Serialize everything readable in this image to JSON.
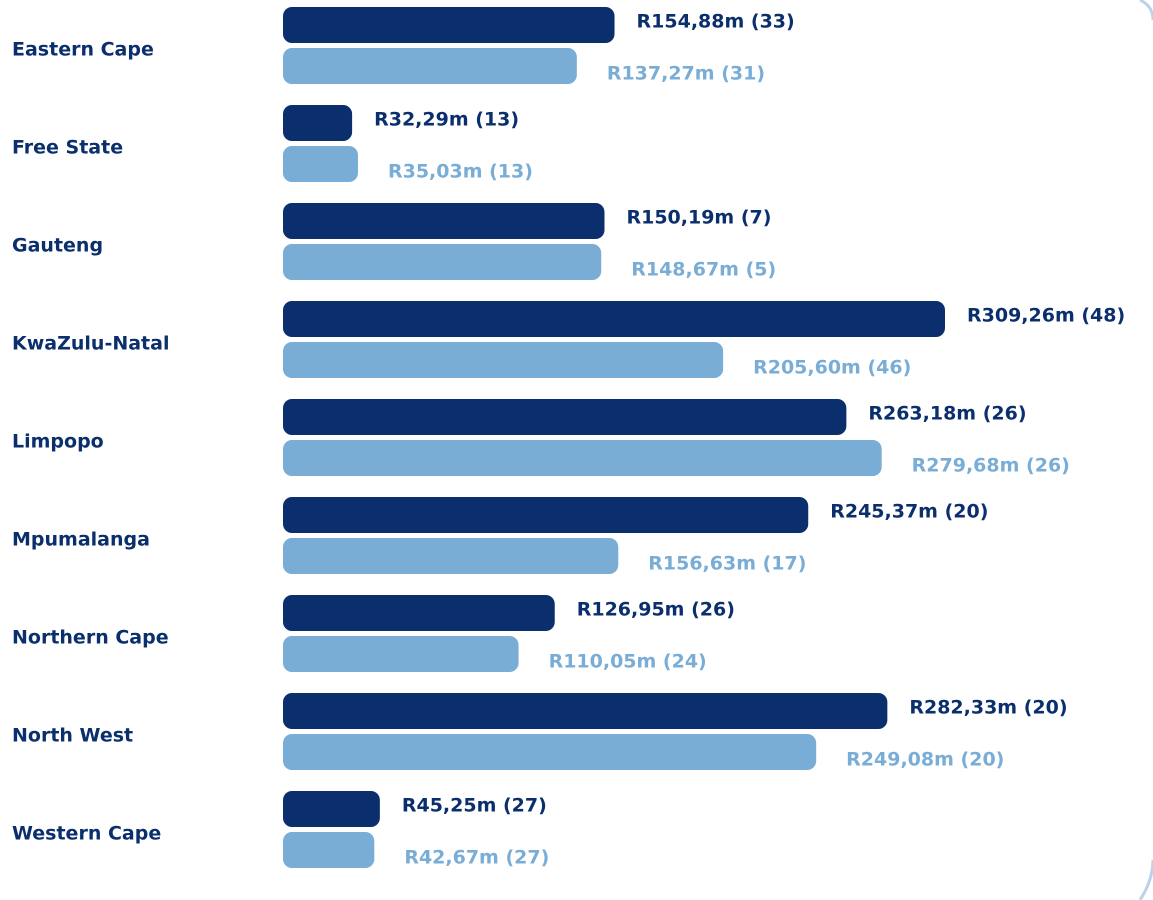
{
  "chart_data": {
    "type": "hbar",
    "categories": [
      "Eastern Cape",
      "Free State",
      "Gauteng",
      "KwaZulu-Natal",
      "Limpopo",
      "Mpumalanga",
      "Northern Cape",
      "North West",
      "Western Cape"
    ],
    "series": [
      {
        "color": "#0b2f6d",
        "values": [
          154.88,
          32.29,
          150.19,
          309.26,
          263.18,
          245.37,
          126.95,
          282.33,
          45.25
        ],
        "value_labels": [
          "R154,88m (33)",
          "R32,29m (13)",
          "R150,19m (7)",
          "R309,26m (48)",
          "R263,18m (26)",
          "R245,37m (20)",
          "R126,95m (26)",
          "R282,33m (20)",
          "R45,25m (27)"
        ]
      },
      {
        "color": "#7aadd6",
        "values": [
          137.27,
          35.03,
          148.67,
          205.6,
          279.68,
          156.63,
          110.05,
          249.08,
          42.67
        ],
        "value_labels": [
          "R137,27m (31)",
          "R35,03m (13)",
          "R148,67m (5)",
          "R205,60m (46)",
          "R279,68m (26)",
          "R156,63m (17)",
          "R110,05m (24)",
          "R249,08m (20)",
          "R42,67m (27)"
        ]
      }
    ]
  }
}
